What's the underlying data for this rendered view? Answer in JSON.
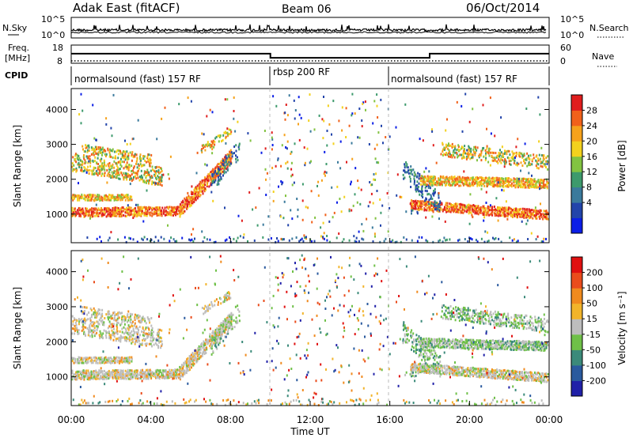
{
  "header": {
    "title": "Adak East (fitACF)",
    "beam": "Beam 06",
    "date": "06/Oct/2014"
  },
  "top_panels": {
    "nsky_label": "N.Sky",
    "nsky_ticks": [
      "10^5",
      "10^0"
    ],
    "nsearch_label": "N.Search",
    "nsearch_ticks": [
      "10^5",
      "10^0"
    ],
    "freq_label": "Freq.",
    "freq_unit": "[MHz]",
    "freq_ticks": [
      "18",
      "8"
    ],
    "nave_label": "Nave",
    "nave_ticks": [
      "60",
      "0"
    ],
    "cpid_label": "CPID",
    "cpid_segments": [
      {
        "label": "normalsound (fast) 157 RF",
        "start": 0,
        "end": 10
      },
      {
        "label": "rbsp 200 RF",
        "start": 10,
        "end": 16
      },
      {
        "label": "normalsound (fast) 157 RF",
        "start": 16,
        "end": 24
      }
    ],
    "freq_series": [
      {
        "t": 0,
        "v": 13.3
      },
      {
        "t": 10,
        "v": 13.3
      },
      {
        "t": 10,
        "v": 10.6
      },
      {
        "t": 18,
        "v": 10.6
      },
      {
        "t": 18,
        "v": 13.3
      },
      {
        "t": 24,
        "v": 13.3
      }
    ],
    "nave_level": 3
  },
  "chart_data": [
    {
      "type": "heatmap",
      "name": "power",
      "ylabel": "Slant Range [km]",
      "yticks": [
        1000,
        2000,
        3000,
        4000
      ],
      "ylim": [
        180,
        4600
      ],
      "xlim": [
        0,
        24
      ],
      "colorbar_label": "Power [dB]",
      "colorbar_ticks": [
        28,
        24,
        20,
        16,
        12,
        8,
        4
      ],
      "colors": [
        "#0b1ee6",
        "#2244aa",
        "#3a7a9c",
        "#3d9a6c",
        "#82c341",
        "#f3d11d",
        "#f6a21b",
        "#f1611a",
        "#e01d1d"
      ]
    },
    {
      "type": "heatmap",
      "name": "velocity",
      "ylabel": "Slant Range [km]",
      "yticks": [
        1000,
        2000,
        3000,
        4000
      ],
      "ylim": [
        180,
        4600
      ],
      "xlim": [
        0,
        24
      ],
      "xlabel": "Time UT",
      "xticks": [
        "00:00",
        "04:00",
        "08:00",
        "12:00",
        "16:00",
        "20:00",
        "00:00"
      ],
      "colorbar_label": "Velocity [m s⁻¹]",
      "colorbar_ticks": [
        200,
        100,
        50,
        15,
        -15,
        -50,
        -100,
        -200
      ],
      "colors": [
        "#2020a8",
        "#2a5a9e",
        "#3b8a7a",
        "#6fc048",
        "#bdbdbd",
        "#f2b42a",
        "#f08a1e",
        "#ea4c1c",
        "#e01010"
      ]
    }
  ]
}
